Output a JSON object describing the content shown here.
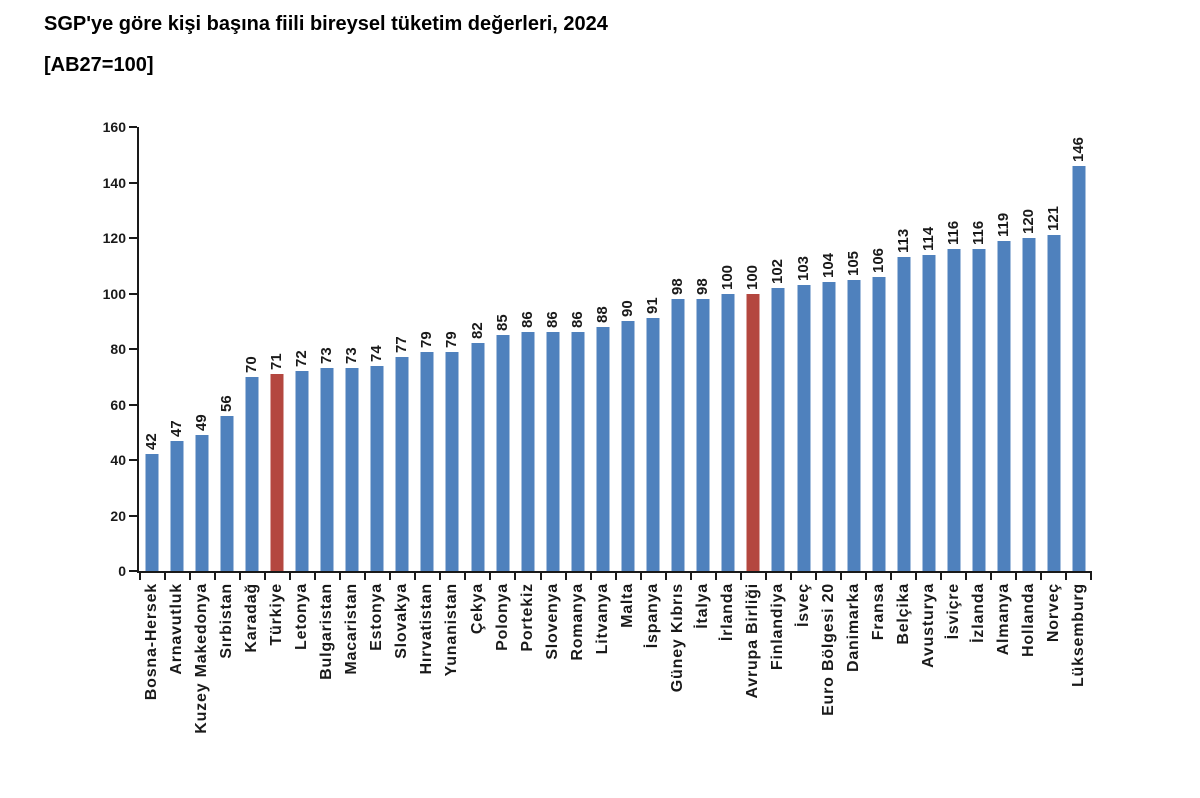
{
  "header": {
    "title": "SGP'ye göre kişi başına fiili bireysel tüketim değerleri, 2024",
    "subtitle": "[AB27=100]"
  },
  "chart_data": {
    "type": "bar",
    "title": "SGP'ye göre kişi başına fiili bireysel tüketim değerleri, 2024",
    "subtitle": "[AB27=100]",
    "categories": [
      "Bosna-Hersek",
      "Arnavutluk",
      "Kuzey Makedonya",
      "Sırbistan",
      "Karadağ",
      "Türkiye",
      "Letonya",
      "Bulgaristan",
      "Macaristan",
      "Estonya",
      "Slovakya",
      "Hırvatistan",
      "Yunanistan",
      "Çekya",
      "Polonya",
      "Portekiz",
      "Slovenya",
      "Romanya",
      "Litvanya",
      "Malta",
      "İspanya",
      "Güney Kıbrıs",
      "İtalya",
      "İrlanda",
      "Avrupa Birliği",
      "Finlandiya",
      "İsveç",
      "Euro Bölgesi 20",
      "Danimarka",
      "Fransa",
      "Belçika",
      "Avusturya",
      "İsviçre",
      "İzlanda",
      "Almanya",
      "Hollanda",
      "Norveç",
      "Lüksemburg"
    ],
    "values": [
      42,
      47,
      49,
      56,
      70,
      71,
      72,
      73,
      73,
      74,
      77,
      79,
      79,
      82,
      85,
      86,
      86,
      86,
      88,
      90,
      91,
      98,
      98,
      100,
      100,
      102,
      103,
      104,
      105,
      106,
      113,
      114,
      116,
      116,
      119,
      120,
      121,
      146
    ],
    "highlighted_categories": [
      "Türkiye",
      "Avrupa Birliği"
    ],
    "highlight_indexes": [
      5,
      24
    ],
    "bar_color": "#4f81bd",
    "highlight_color": "#b4473f",
    "axis_color": "#1a1a1a",
    "xlabel": "",
    "ylabel": "",
    "ylim": [
      0,
      160
    ],
    "yticks": [
      0,
      20,
      40,
      60,
      80,
      100,
      120,
      140,
      160
    ],
    "grid": false,
    "legend": "none",
    "value_labels": "rotated-90-above-bars",
    "category_labels": "rotated-90-below-axis"
  }
}
